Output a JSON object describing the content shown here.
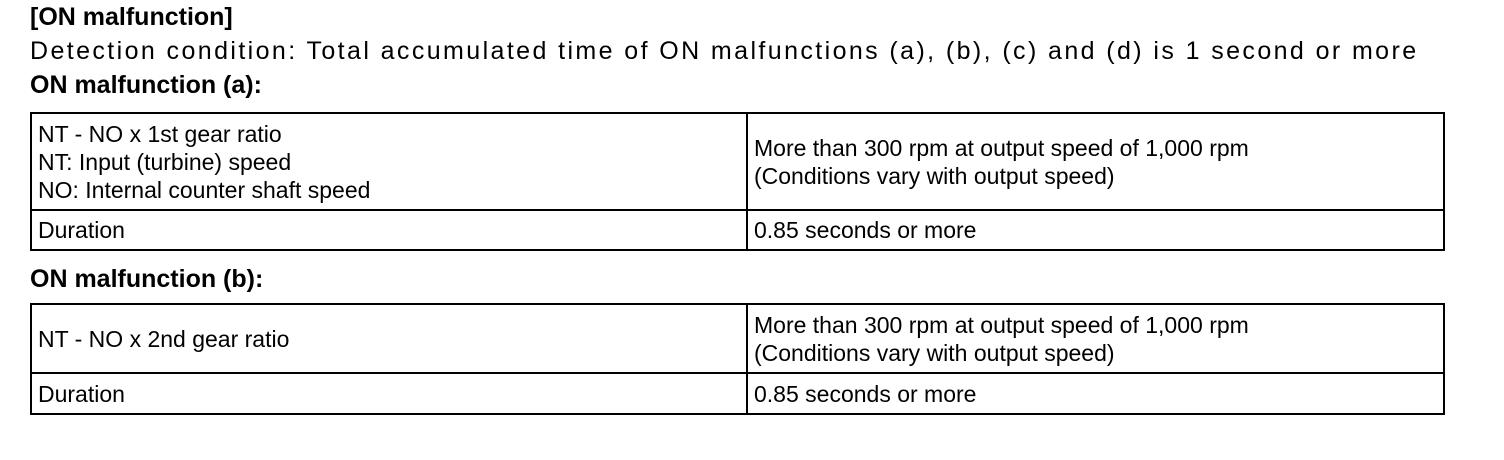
{
  "page": {
    "title": "[ON malfunction]",
    "detection_condition": "Detection condition: Total accumulated time of ON malfunctions (a), (b), (c) and (d) is 1 second or more"
  },
  "colors": {
    "text": "#000000",
    "background": "#ffffff",
    "table_border": "#000000"
  },
  "sections": [
    {
      "heading": "ON malfunction (a):",
      "rows": [
        {
          "condition_lines": [
            "NT - NO x 1st gear ratio",
            "NT: Input (turbine) speed",
            "NO: Internal counter shaft speed"
          ],
          "value_lines": [
            "More than 300 rpm at output speed of 1,000 rpm",
            "(Conditions vary with output speed)"
          ]
        },
        {
          "condition_lines": [
            "Duration"
          ],
          "value_lines": [
            "0.85 seconds or more"
          ]
        }
      ]
    },
    {
      "heading": "ON malfunction (b):",
      "rows": [
        {
          "condition_lines": [
            "NT - NO x 2nd gear ratio"
          ],
          "value_lines": [
            "More than 300 rpm at output speed of 1,000 rpm",
            "(Conditions vary with output speed)"
          ]
        },
        {
          "condition_lines": [
            "Duration"
          ],
          "value_lines": [
            "0.85 seconds or more"
          ]
        }
      ]
    }
  ]
}
